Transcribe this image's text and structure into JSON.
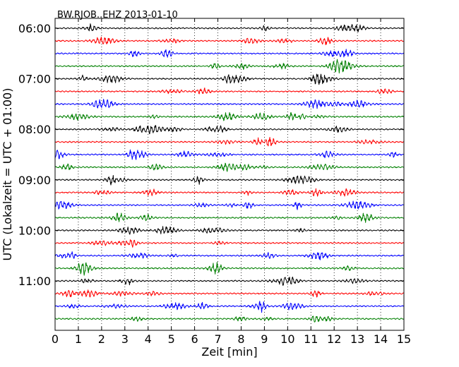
{
  "chart_data": {
    "type": "line",
    "title": "BW.RJOB..EHZ 2013-01-10",
    "xlabel": "Zeit  [min]",
    "ylabel": "UTC (Lokalzeit = UTC + 01:00)",
    "xlim": [
      0,
      15
    ],
    "x_ticks": [
      0,
      1,
      2,
      3,
      4,
      5,
      6,
      7,
      8,
      9,
      10,
      11,
      12,
      13,
      14,
      15
    ],
    "grid_x": true,
    "interval_minutes": 15,
    "start_time": "06:00",
    "y_tick_labels": [
      "06:00",
      "07:00",
      "08:00",
      "09:00",
      "10:00",
      "11:00"
    ],
    "trace_count": 24,
    "trace_colors": [
      "#000000",
      "#ff0000",
      "#0000ff",
      "#008000"
    ],
    "series": [
      {
        "start": "06:00",
        "color": "#000000"
      },
      {
        "start": "06:15",
        "color": "#ff0000"
      },
      {
        "start": "06:30",
        "color": "#0000ff"
      },
      {
        "start": "06:45",
        "color": "#008000"
      },
      {
        "start": "07:00",
        "color": "#000000"
      },
      {
        "start": "07:15",
        "color": "#ff0000"
      },
      {
        "start": "07:30",
        "color": "#0000ff"
      },
      {
        "start": "07:45",
        "color": "#008000"
      },
      {
        "start": "08:00",
        "color": "#000000"
      },
      {
        "start": "08:15",
        "color": "#ff0000"
      },
      {
        "start": "08:30",
        "color": "#0000ff"
      },
      {
        "start": "08:45",
        "color": "#008000"
      },
      {
        "start": "09:00",
        "color": "#000000"
      },
      {
        "start": "09:15",
        "color": "#ff0000"
      },
      {
        "start": "09:30",
        "color": "#0000ff"
      },
      {
        "start": "09:45",
        "color": "#008000"
      },
      {
        "start": "10:00",
        "color": "#000000"
      },
      {
        "start": "10:15",
        "color": "#ff0000"
      },
      {
        "start": "10:30",
        "color": "#0000ff"
      },
      {
        "start": "10:45",
        "color": "#008000"
      },
      {
        "start": "11:00",
        "color": "#000000"
      },
      {
        "start": "11:15",
        "color": "#ff0000"
      },
      {
        "start": "11:30",
        "color": "#0000ff"
      },
      {
        "start": "11:45",
        "color": "#008000"
      }
    ]
  }
}
